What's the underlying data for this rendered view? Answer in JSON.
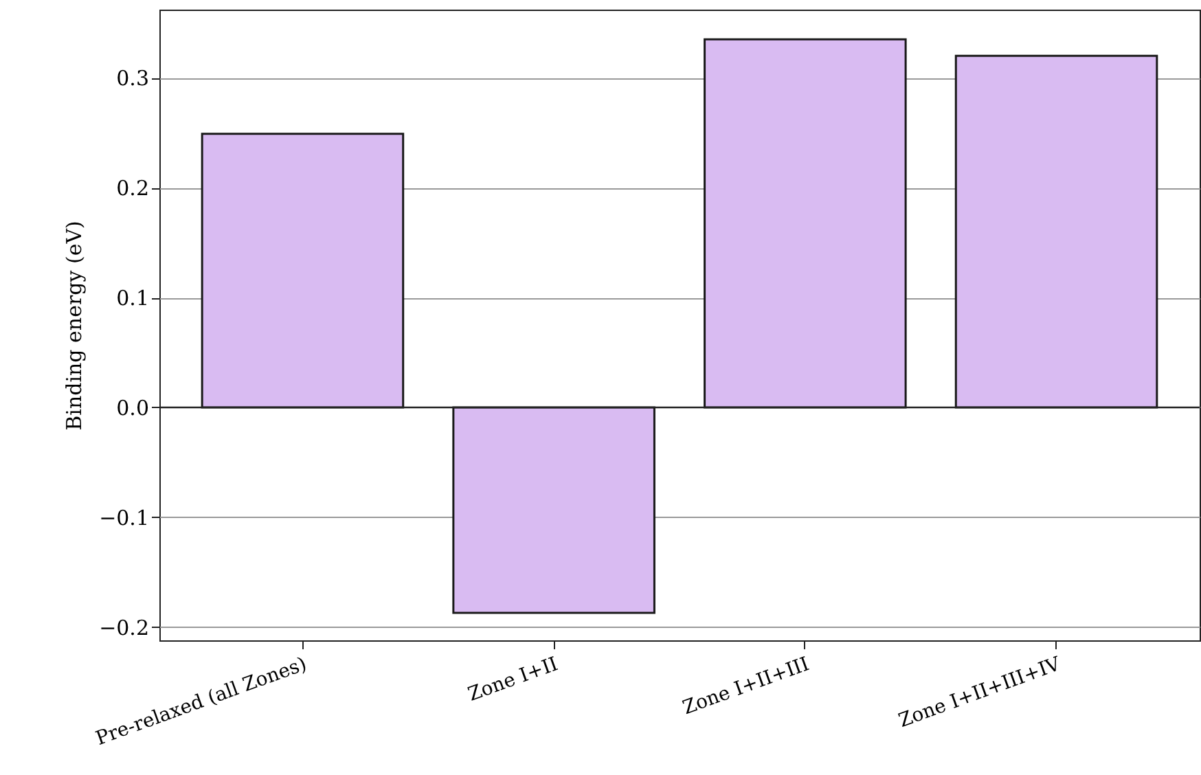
{
  "chart_data": {
    "type": "bar",
    "ylabel": "Binding energy (eV)",
    "categories": [
      "Pre-relaxed (all Zones)",
      "Zone I+II",
      "Zone I+II+III",
      "Zone I+II+III+IV"
    ],
    "values": [
      0.249,
      -0.187,
      0.335,
      0.32
    ],
    "color": "#d9bbf2",
    "ylim": [
      -0.212,
      0.362
    ],
    "yticks": [
      {
        "value": -0.2,
        "label": "−0.2"
      },
      {
        "value": -0.1,
        "label": "−0.1"
      },
      {
        "value": 0,
        "label": "0.0"
      },
      {
        "value": 0.1,
        "label": "0.1"
      },
      {
        "value": 0.2,
        "label": "0.2"
      },
      {
        "value": 0.3,
        "label": "0.3"
      }
    ],
    "grid": "y"
  }
}
